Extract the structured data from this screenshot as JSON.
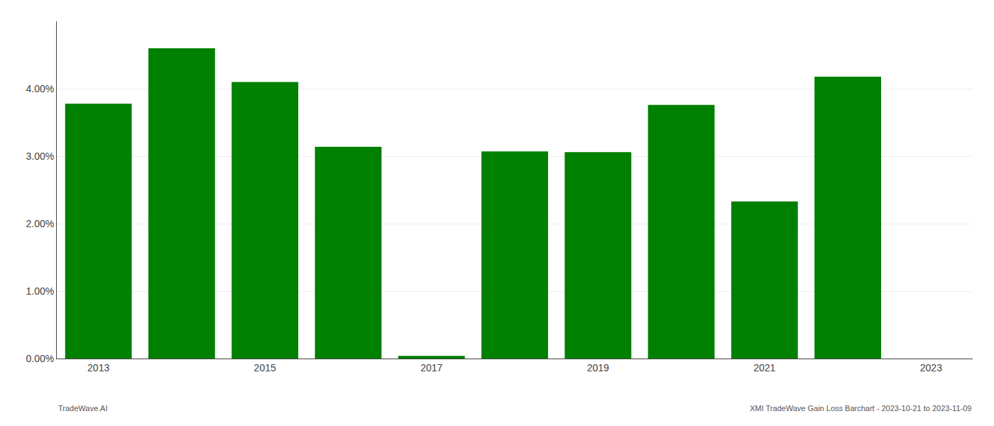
{
  "chart_data": {
    "type": "bar",
    "categories": [
      "2013",
      null,
      "2015",
      null,
      "2017",
      null,
      "2019",
      null,
      "2021",
      null,
      "2023"
    ],
    "values": [
      0.0378,
      0.046,
      0.041,
      0.0314,
      0.0004,
      0.0307,
      0.0306,
      0.0376,
      0.0233,
      0.0418,
      0.0
    ],
    "color": "#008000",
    "ylim": [
      0,
      0.05
    ],
    "yticks": [
      {
        "value": 0.0,
        "label": "0.00%"
      },
      {
        "value": 0.01,
        "label": "1.00%"
      },
      {
        "value": 0.02,
        "label": "2.00%"
      },
      {
        "value": 0.03,
        "label": "3.00%"
      },
      {
        "value": 0.04,
        "label": "4.00%"
      }
    ],
    "grid": true,
    "annotations": [
      "TradeWave.AI",
      "XMI TradeWave Gain Loss Barchart - 2023-10-21 to 2023-11-09"
    ]
  }
}
